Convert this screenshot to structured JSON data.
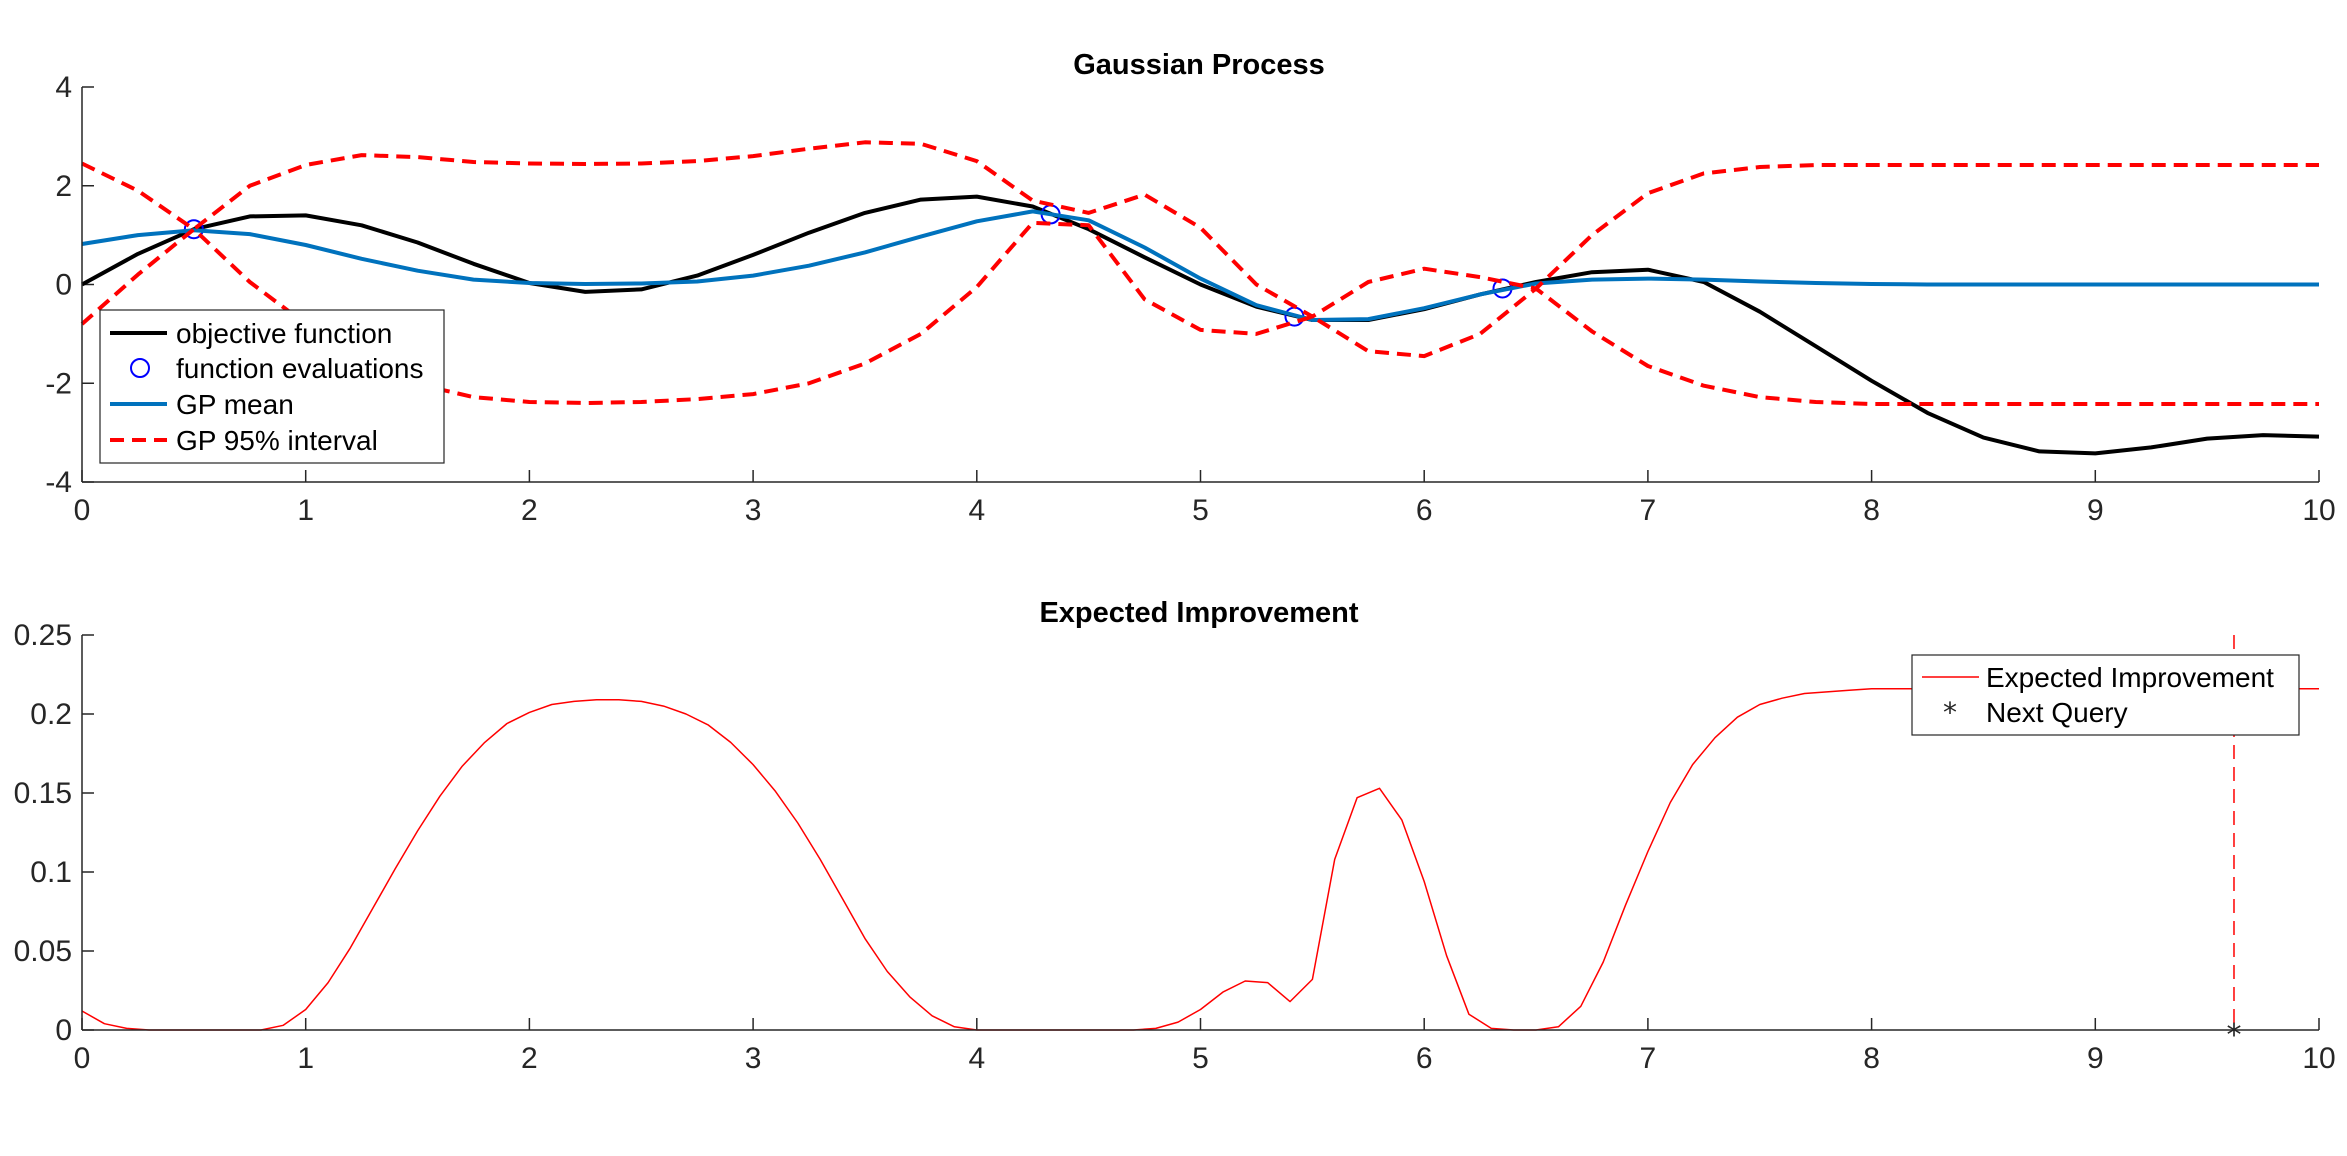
{
  "chart_data": [
    {
      "type": "line",
      "title": "Gaussian Process",
      "xlabel": "",
      "ylabel": "",
      "xlim": [
        0,
        10
      ],
      "ylim": [
        -4,
        4
      ],
      "xticks": [
        "0",
        "1",
        "2",
        "3",
        "4",
        "5",
        "6",
        "7",
        "8",
        "9",
        "10"
      ],
      "yticks": [
        "-4",
        "-2",
        "0",
        "2",
        "4"
      ],
      "grid": false,
      "legend_position": "bottom-left",
      "series": [
        {
          "name": "objective function",
          "color": "#000000",
          "style": "solid",
          "x": [
            0,
            0.25,
            0.5,
            0.75,
            1,
            1.25,
            1.5,
            1.75,
            2,
            2.25,
            2.5,
            2.75,
            3,
            3.25,
            3.5,
            3.75,
            4,
            4.25,
            4.5,
            4.75,
            5,
            5.25,
            5.5,
            5.75,
            6,
            6.25,
            6.5,
            6.75,
            7,
            7.25,
            7.5,
            7.75,
            8,
            8.25,
            8.5,
            8.75,
            9,
            9.25,
            9.5,
            9.75,
            10
          ],
          "y": [
            0,
            0.62,
            1.12,
            1.38,
            1.4,
            1.2,
            0.85,
            0.42,
            0.03,
            -0.15,
            -0.1,
            0.18,
            0.6,
            1.05,
            1.45,
            1.72,
            1.78,
            1.58,
            1.12,
            0.55,
            0.0,
            -0.45,
            -0.72,
            -0.72,
            -0.5,
            -0.2,
            0.05,
            0.25,
            0.3,
            0.05,
            -0.55,
            -1.25,
            -1.95,
            -2.6,
            -3.1,
            -3.38,
            -3.42,
            -3.3,
            -3.12,
            -3.05,
            -3.08
          ]
        },
        {
          "name": "function evaluations",
          "color": "#0000ff",
          "style": "marker-circle",
          "x": [
            0.5,
            4.33,
            5.42,
            6.35
          ],
          "y": [
            1.12,
            1.42,
            -0.65,
            -0.08
          ]
        },
        {
          "name": "GP mean",
          "color": "#0072BD",
          "style": "solid",
          "x": [
            0,
            0.25,
            0.5,
            0.75,
            1,
            1.25,
            1.5,
            1.75,
            2,
            2.25,
            2.5,
            2.75,
            3,
            3.25,
            3.5,
            3.75,
            4,
            4.25,
            4.5,
            4.75,
            5,
            5.25,
            5.5,
            5.75,
            6,
            6.25,
            6.5,
            6.75,
            7,
            7.25,
            7.5,
            7.75,
            8,
            8.25,
            8.5,
            8.75,
            9,
            9.25,
            9.5,
            9.75,
            10
          ],
          "y": [
            0.82,
            1.0,
            1.1,
            1.02,
            0.8,
            0.52,
            0.28,
            0.1,
            0.03,
            0.01,
            0.02,
            0.06,
            0.18,
            0.38,
            0.65,
            0.97,
            1.28,
            1.48,
            1.3,
            0.75,
            0.12,
            -0.42,
            -0.72,
            -0.7,
            -0.48,
            -0.2,
            0.02,
            0.1,
            0.12,
            0.1,
            0.06,
            0.03,
            0.01,
            0,
            0,
            0,
            0,
            0,
            0,
            0,
            0
          ]
        },
        {
          "name": "GP 95% interval",
          "color": "#ff0000",
          "style": "dashed",
          "x": [
            0,
            0.25,
            0.5,
            0.75,
            1,
            1.25,
            1.5,
            1.75,
            2,
            2.25,
            2.5,
            2.75,
            3,
            3.25,
            3.5,
            3.75,
            4,
            4.25,
            4.5,
            4.75,
            5,
            5.25,
            5.5,
            5.75,
            6,
            6.25,
            6.5,
            6.75,
            7,
            7.25,
            7.5,
            7.75,
            8,
            8.25,
            8.5,
            8.75,
            9,
            9.25,
            9.5,
            9.75,
            10
          ],
          "y": [
            2.45,
            1.9,
            1.12,
            2.0,
            2.42,
            2.62,
            2.58,
            2.48,
            2.45,
            2.44,
            2.45,
            2.5,
            2.6,
            2.75,
            2.88,
            2.85,
            2.5,
            1.7,
            1.45,
            1.82,
            1.15,
            0.0,
            -0.65,
            0.05,
            0.32,
            0.15,
            -0.08,
            1.0,
            1.85,
            2.25,
            2.38,
            2.42,
            2.42,
            2.42,
            2.42,
            2.42,
            2.42,
            2.42,
            2.42,
            2.42,
            2.42
          ]
        },
        {
          "name": "",
          "color": "#ff0000",
          "style": "dashed",
          "x": [
            0,
            0.25,
            0.5,
            0.75,
            1,
            1.25,
            1.5,
            1.75,
            2,
            2.25,
            2.5,
            2.75,
            3,
            3.25,
            3.5,
            3.75,
            4,
            4.25,
            4.5,
            4.75,
            5,
            5.25,
            5.5,
            5.75,
            6,
            6.25,
            6.5,
            6.75,
            7,
            7.25,
            7.5,
            7.75,
            8,
            8.25,
            8.5,
            8.75,
            9,
            9.25,
            9.5,
            9.75,
            10
          ],
          "y": [
            -0.8,
            0.2,
            1.12,
            0.05,
            -0.8,
            -1.55,
            -2.02,
            -2.28,
            -2.38,
            -2.4,
            -2.38,
            -2.32,
            -2.22,
            -2.0,
            -1.6,
            -1.0,
            -0.05,
            1.25,
            1.2,
            -0.3,
            -0.92,
            -1.0,
            -0.65,
            -1.35,
            -1.45,
            -1.0,
            -0.08,
            -0.95,
            -1.65,
            -2.05,
            -2.28,
            -2.38,
            -2.42,
            -2.42,
            -2.42,
            -2.42,
            -2.42,
            -2.42,
            -2.42,
            -2.42,
            -2.42
          ]
        }
      ]
    },
    {
      "type": "line",
      "title": "Expected Improvement",
      "xlabel": "",
      "ylabel": "",
      "xlim": [
        0,
        10
      ],
      "ylim": [
        0,
        0.25
      ],
      "xticks": [
        "0",
        "1",
        "2",
        "3",
        "4",
        "5",
        "6",
        "7",
        "8",
        "9",
        "10"
      ],
      "yticks": [
        "0",
        "0.05",
        "0.1",
        "0.15",
        "0.2",
        "0.25"
      ],
      "grid": false,
      "legend_position": "top-right",
      "series": [
        {
          "name": "Expected Improvement",
          "color": "#ff0000",
          "style": "solid-thin",
          "x": [
            0,
            0.1,
            0.2,
            0.3,
            0.4,
            0.5,
            0.6,
            0.7,
            0.8,
            0.9,
            1,
            1.1,
            1.2,
            1.3,
            1.4,
            1.5,
            1.6,
            1.7,
            1.8,
            1.9,
            2,
            2.1,
            2.2,
            2.3,
            2.4,
            2.5,
            2.6,
            2.7,
            2.8,
            2.9,
            3,
            3.1,
            3.2,
            3.3,
            3.4,
            3.5,
            3.6,
            3.7,
            3.8,
            3.9,
            4,
            4.1,
            4.2,
            4.3,
            4.4,
            4.5,
            4.6,
            4.7,
            4.8,
            4.9,
            5,
            5.1,
            5.2,
            5.3,
            5.4,
            5.5,
            5.6,
            5.7,
            5.8,
            5.9,
            6,
            6.1,
            6.2,
            6.3,
            6.4,
            6.5,
            6.6,
            6.7,
            6.8,
            6.9,
            7,
            7.1,
            7.2,
            7.3,
            7.4,
            7.5,
            7.6,
            7.7,
            7.8,
            7.9,
            8,
            8.1,
            8.2,
            8.3,
            8.4,
            8.5,
            8.6,
            8.7,
            8.8,
            8.9,
            9,
            9.1,
            9.2,
            9.3,
            9.4,
            9.5,
            9.6,
            9.7,
            9.8,
            9.9,
            10
          ],
          "y": [
            0.012,
            0.004,
            0.001,
            0,
            0,
            0,
            0,
            0,
            0,
            0.003,
            0.013,
            0.03,
            0.052,
            0.077,
            0.102,
            0.126,
            0.148,
            0.167,
            0.182,
            0.194,
            0.201,
            0.206,
            0.208,
            0.209,
            0.209,
            0.208,
            0.205,
            0.2,
            0.193,
            0.182,
            0.168,
            0.151,
            0.131,
            0.108,
            0.083,
            0.058,
            0.037,
            0.021,
            0.009,
            0.002,
            0,
            0,
            0,
            0,
            0,
            0,
            0,
            0,
            0.001,
            0.005,
            0.013,
            0.024,
            0.031,
            0.03,
            0.018,
            0.032,
            0.108,
            0.147,
            0.153,
            0.133,
            0.094,
            0.047,
            0.01,
            0.001,
            0,
            0,
            0.002,
            0.015,
            0.043,
            0.079,
            0.113,
            0.144,
            0.168,
            0.185,
            0.198,
            0.206,
            0.21,
            0.213,
            0.214,
            0.215,
            0.216,
            0.216,
            0.216,
            0.216,
            0.216,
            0.216,
            0.216,
            0.216,
            0.216,
            0.216,
            0.216,
            0.216,
            0.216,
            0.216,
            0.216,
            0.216,
            0.216,
            0.216,
            0.216,
            0.216,
            0.216
          ]
        },
        {
          "name": "Next Query",
          "color": "#ff0000",
          "style": "marker-asterisk",
          "x": [
            9.62
          ],
          "y": [
            0
          ]
        }
      ]
    }
  ]
}
